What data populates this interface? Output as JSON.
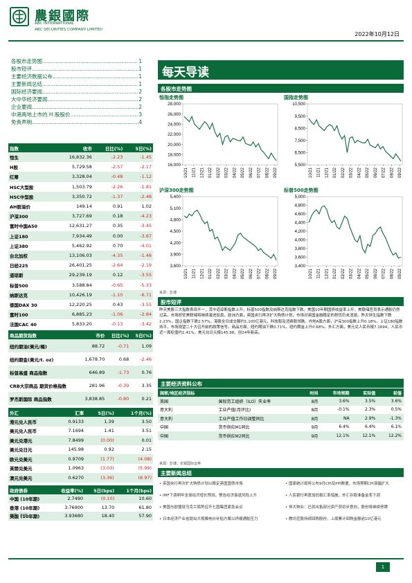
{
  "header": {
    "logo_cn": "農銀國際",
    "logo_en_1": "ABC INTERNATIONAL",
    "logo_en_2": "ABC SECURITIES COMPANY LIMITED",
    "date": "2022年10月12日"
  },
  "toc": [
    {
      "label": "各股市走势图",
      "page": "1"
    },
    {
      "label": "股市短评",
      "page": "1"
    },
    {
      "label": "主要经济数据公布",
      "page": "1"
    },
    {
      "label": "主要新闻总结",
      "page": "1"
    },
    {
      "label": "国际经济要闻",
      "page": "2"
    },
    {
      "label": "大中华经济要闻",
      "page": "2"
    },
    {
      "label": "企业要闻",
      "page": "2"
    },
    {
      "label": "中港两地上市的 H 股股价",
      "page": "3"
    },
    {
      "label": "免责声明",
      "page": "4"
    }
  ],
  "banner_title": "每天导读",
  "charts_section": "各股市走势图",
  "chart_data": [
    {
      "type": "line",
      "title": "恒指走势图",
      "ylim": [
        16000,
        28000
      ],
      "yticks": [
        "28,000",
        "26,000",
        "24,000",
        "22,000",
        "20,000",
        "18,000",
        "16,000"
      ],
      "xticks": [
        "10/21",
        "11/21",
        "12/21",
        "01/22",
        "02/22",
        "03/22",
        "04/22",
        "05/22",
        "06/22",
        "07/22",
        "08/22",
        "09/22"
      ],
      "values": [
        25500,
        25000,
        24500,
        25500,
        24000,
        23500,
        23000,
        23800,
        24500,
        24000,
        23000,
        24200,
        22500,
        21500,
        22200,
        20000,
        21500,
        21800,
        20500,
        21200,
        21000,
        20800,
        20700,
        21500,
        20200,
        20000,
        19800,
        20500,
        19500,
        20200,
        19000,
        18500,
        17800,
        17200,
        18300,
        17500,
        16800
      ]
    },
    {
      "type": "line",
      "title": "国指走势图",
      "ylim": [
        5500,
        10500
      ],
      "yticks": [
        "10,500",
        "9,500",
        "8,500",
        "7,500",
        "6,500",
        "5,500"
      ],
      "xticks": [
        "10/21",
        "11/21",
        "12/21",
        "01/22",
        "02/22",
        "03/22",
        "04/22",
        "05/22",
        "06/22",
        "07/22",
        "08/22",
        "09/22"
      ],
      "values": [
        9300,
        9000,
        8800,
        9200,
        8700,
        8500,
        8300,
        8600,
        8800,
        8700,
        8300,
        8700,
        8000,
        7600,
        7900,
        6500,
        7700,
        7800,
        7300,
        7500,
        7400,
        7300,
        7300,
        7600,
        7100,
        7000,
        6900,
        7200,
        6800,
        7000,
        6600,
        6400,
        6200,
        6000,
        6400,
        6100,
        5800
      ]
    },
    {
      "type": "line",
      "title": "沪深300走势图",
      "ylim": [
        3600,
        5400
      ],
      "yticks": [
        "5,400",
        "5,100",
        "4,800",
        "4,500",
        "4,200",
        "3,900",
        "3,600"
      ],
      "xticks": [
        "10/21",
        "11/21",
        "12/21",
        "01/22",
        "02/22",
        "03/22",
        "04/22",
        "05/22",
        "06/22",
        "07/22",
        "08/22",
        "09/22"
      ],
      "values": [
        4900,
        4850,
        4950,
        4900,
        5000,
        5050,
        4950,
        4800,
        4700,
        4750,
        4500,
        4550,
        4300,
        4350,
        4200,
        4000,
        4100,
        4050,
        4000,
        4100,
        4200,
        4400,
        4450,
        4350,
        4300,
        4250,
        4200,
        4150,
        4100,
        4000,
        4050,
        3950,
        3900,
        3850,
        3800,
        3900,
        3750
      ]
    },
    {
      "type": "line",
      "title": "标普500走势图",
      "ylim": [
        3400,
        5000
      ],
      "yticks": [
        "5,000",
        "4,800",
        "4,600",
        "4,400",
        "4,200",
        "4,000",
        "3,800",
        "3,600",
        "3,400"
      ],
      "xticks": [
        "10/21",
        "11/21",
        "12/21",
        "01/22",
        "02/22",
        "03/22",
        "04/22",
        "05/22",
        "06/22",
        "07/22",
        "08/22",
        "09/22"
      ],
      "values": [
        4400,
        4550,
        4650,
        4700,
        4600,
        4750,
        4790,
        4700,
        4500,
        4400,
        4450,
        4300,
        4250,
        4400,
        4550,
        4500,
        4300,
        4150,
        4000,
        3950,
        4100,
        3800,
        3700,
        3900,
        3850,
        4100,
        4150,
        4250,
        4300,
        4150,
        4050,
        3900,
        3750,
        3650,
        3700,
        3580,
        3600
      ]
    }
  ],
  "chart_source": "来源：彭博",
  "market_table": {
    "headers": [
      "指数",
      "收市",
      "日比(%)",
      "5日(%)"
    ],
    "rows": [
      [
        "恒生",
        "16,832.36",
        "-2.23",
        "-1.45"
      ],
      [
        "H股",
        "5,729.58",
        "-2.57",
        "-2.17"
      ],
      [
        "红筹",
        "3,328.04",
        "-0.48",
        "-1.12"
      ],
      [
        "HSC大型股",
        "1,503.79",
        "-2.26",
        "-1.81"
      ],
      [
        "HSC中型股",
        "3,350.72",
        "-1.37",
        "-2.48"
      ],
      [
        "AH股溢价",
        "149.14",
        "0.91",
        "1.02"
      ],
      [
        "沪深300",
        "3,727.69",
        "0.18",
        "-4.23"
      ],
      [
        "富时中国A50",
        "12,631.27",
        "0.35",
        "-3.45"
      ],
      [
        "上证180",
        "7,934.49",
        "0.00",
        "-3.87"
      ],
      [
        "上证380",
        "5,462.92",
        "0.70",
        "-4.01"
      ],
      [
        "台北加权",
        "13,106.03",
        "-4.35",
        "-1.46"
      ],
      [
        "日经225",
        "26,401.25",
        "-2.64",
        "-2.19"
      ],
      [
        "道琼斯",
        "29,239.19",
        "0.12",
        "-3.55"
      ],
      [
        "标普500",
        "3,588.84",
        "-0.65",
        "-5.33"
      ],
      [
        "纳斯达克",
        "10,426.19",
        "-1.10",
        "-6.71"
      ],
      [
        "德国DAX 30",
        "12,220.25",
        "0.43",
        "-3.55"
      ],
      [
        "富时100",
        "6,885.23",
        "-1.06",
        "-2.84"
      ],
      [
        "法国CAC 40",
        "5,833.20",
        "-0.13",
        "-3.42"
      ]
    ]
  },
  "commodity_table": {
    "headers": [
      "商品期货指数",
      "市价",
      "日比(%)",
      "5日(%)"
    ],
    "rows": [
      [
        "纽约期油(美元/桶)",
        "88.72",
        "-0.71",
        "1.09"
      ],
      [
        "纽约期金(美元/t. oz)",
        "1,678.70",
        "0.68",
        "-2.46"
      ],
      [
        "标普高盛 商品指数",
        "646.89",
        "-1.73",
        "0.76"
      ],
      [
        "CRB大宗商品 期货价格指数",
        "281.96",
        "-0.39",
        "3.35"
      ],
      [
        "罗杰斯国际 商品指数",
        "3,838.85",
        "-0.80",
        "0.21"
      ]
    ]
  },
  "fx_table": {
    "headers": [
      "外汇",
      "汇率",
      "5日(%)",
      "1个月(%)"
    ],
    "rows": [
      [
        "港元兑人民币",
        "0.9133",
        "1.39",
        "3.50"
      ],
      [
        "美元兑人民币",
        "7.1694",
        "1.41",
        "3.51"
      ],
      [
        "美元兑港元",
        "7.8499",
        "(0.00)",
        "0.01"
      ],
      [
        "美元兑日元",
        "145.98",
        "0.92",
        "2.15"
      ],
      [
        "欧元兑美元",
        "0.9709",
        "(1.77)",
        "(4.08)"
      ],
      [
        "英镑兑美元",
        "1.0963",
        "(3.03)",
        "(5.99)"
      ],
      [
        "澳元兑美元",
        "0.6270",
        "(3.36)",
        "(8.97)"
      ]
    ]
  },
  "bond_table": {
    "headers": [
      "政府债券",
      "收益率(%)",
      "5日(bps)",
      "1个月(bps)"
    ],
    "rows": [
      [
        "中国 (10年期)",
        "2.7490",
        "(0.10)",
        "10.60"
      ],
      [
        "香港 (10年期)",
        "3.76900",
        "13.70",
        "61.80"
      ],
      [
        "美国 (10年期)",
        "3.93680",
        "18.40",
        "57.90"
      ]
    ]
  },
  "table_source": "来源：彭博",
  "commentary": {
    "title": "股市短评",
    "text": "昨天美股三大指数表现不一，其中道琼斯指数上升，标普500指数及纳斯达克指数下跌。美国10年期国债收益率上升，美联储官员表示通胀仍然过高，市场担忧美联储将继续激进加息。欧洲方面，英国央行再次扩大购债计划，市场对英国金融稳定的担忧仍未消退。昨天恒生指数下跌2.23%，国企指数下跌2.57%，港股全日成交额约1,100亿港元，科技股及消费股领跌。内地A股方面，沪深300指数上升0.18%，上证180指数持平，市场观望二十大召开前的政策信号。商品方面，纽约期油下跌0.71%，纽约期金上升0.68%。外汇方面，美元兑人民币报7.1694，人民币近一周贬值约1.41%，美元兑日元报145.98，创24年新高。"
  },
  "econ_section": "主要经济资料公布",
  "econ_table": {
    "headers": [
      "国家/地区经济指标",
      "",
      "时间",
      "市场预期",
      "实际值",
      "前值"
    ],
    "rows": [
      [
        "英国",
        "国际劳工组织（ILO）失业率",
        "8月",
        "3.6%",
        "3.5%",
        "3.6%"
      ],
      [
        "意大利",
        "工业产值(月环比)",
        "8月",
        "-0.1%",
        "2.3%",
        "0.5%"
      ],
      [
        "意大利",
        "工业产值工作日调整同比",
        "8月",
        "NA",
        "2.9%",
        "-1.3%"
      ],
      [
        "中国",
        "货币供应M1同比",
        "9月",
        "6.4%",
        "6.4%",
        "6.1%"
      ],
      [
        "中国",
        "货币供应M2同比",
        "9月",
        "12.1%",
        "12.1%",
        "12.2%"
      ]
    ]
  },
  "econ_source": "来源：彭博，农银国际证券",
  "news_section": "主要新闻总结",
  "news_left": [
    "• 英国央行再次扩大购债计划以稳定英国国债市场",
    "• IMF下调明年全球经济增长预测，警告经济衰退风险上升",
    "• 美国与欧盟就乌克兰局势召开七国集团紧急会议",
    "• 日本经济产业省提出大规模电价补贴方案以纾缓通胀压力"
  ],
  "news_right": [
    "• 国家统计局将公布9月CPI及PPI数据，市场预期CPI涨幅扩大",
    "• 人民银行再度加码稳汇率措施，外汇存款准备金率下调",
    "• 恒大物业：已就出售部分资产获初步意向，股份将继续停牌",
    "• 腾讯控股持续回购股份，上周累计回购金额逾10亿港元"
  ],
  "page_number": "1",
  "colors": {
    "brand": "#0a6a3a",
    "negative": "#d62020",
    "shade": "#dcefe2"
  }
}
